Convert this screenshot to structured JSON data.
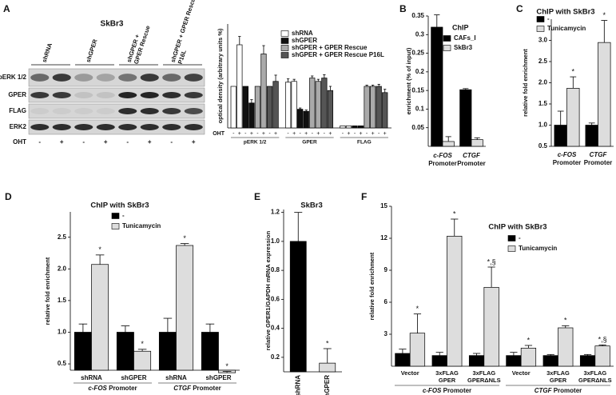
{
  "blot": {
    "panel": "A",
    "title": "SkBr3",
    "lanes": [
      [
        "shRNA"
      ],
      [
        "shGPER"
      ],
      [
        "shGPER +",
        "GPER Rescue"
      ],
      [
        "shGPER + GPER Rescue",
        "P16L"
      ]
    ],
    "rows": [
      "pERK 1/2",
      "GPER",
      "FLAG",
      "ERK2"
    ],
    "treatment": "OHT",
    "levels": [
      "-",
      "+"
    ]
  },
  "chart_data": [
    {
      "type": "bar",
      "panel": "A",
      "ylabel": "optical density (arbitrary units %)",
      "xlabel": "OHT",
      "groups": [
        "pERK 1/2",
        "GPER",
        "FLAG"
      ],
      "categories": [
        "-",
        "+",
        "-",
        "+",
        "-",
        "+"
      ],
      "ylim": [
        0,
        250
      ],
      "series": [
        {
          "name": "shRNA",
          "color": "#ffffff",
          "values": [
            100,
            200,
            110,
            112,
            5,
            5
          ],
          "errors": [
            0,
            20,
            8,
            5,
            0,
            0
          ]
        },
        {
          "name": "shGPER",
          "color": "#111111",
          "values": [
            100,
            60,
            45,
            40,
            5,
            5
          ],
          "errors": [
            0,
            8,
            3,
            3,
            0,
            0
          ]
        },
        {
          "name": "shGPER + GPER Rescue",
          "color": "#aaaaaa",
          "values": [
            100,
            178,
            120,
            112,
            100,
            100
          ],
          "errors": [
            0,
            20,
            5,
            5,
            3,
            3
          ]
        },
        {
          "name": "shGPER + GPER Rescue P16L",
          "color": "#555555",
          "values": [
            100,
            112,
            120,
            90,
            100,
            85
          ],
          "errors": [
            0,
            15,
            8,
            10,
            5,
            8
          ]
        }
      ]
    },
    {
      "type": "bar",
      "panel": "B",
      "ylabel": "enrichment (% of input)",
      "legend_title": "ChIP",
      "categories": [
        "c-FOS",
        "CTGF"
      ],
      "category_note": "Promoter",
      "ylim": [
        0,
        0.35
      ],
      "yticks": [
        0.05,
        0.1,
        0.15,
        0.2,
        0.25,
        0.3,
        0.35
      ],
      "series": [
        {
          "name": "CAFs_I",
          "color": "#000000",
          "values": [
            0.32,
            0.152
          ],
          "errors": [
            0.033,
            0.003
          ]
        },
        {
          "name": "SkBr3",
          "color": "#dddddd",
          "values": [
            0.013,
            0.018
          ],
          "errors": [
            0.013,
            0.005
          ]
        }
      ]
    },
    {
      "type": "bar",
      "panel": "C",
      "title": "ChIP with SkBr3",
      "ylabel": "relative fold enrichment",
      "categories": [
        "c-FOS",
        "CTGF"
      ],
      "category_note": "Promoter",
      "ylim": [
        0.5,
        3.5
      ],
      "yticks": [
        0.5,
        {
          "value": 1,
          "label": "1.0"
        },
        1.5,
        {
          "value": 2,
          "label": "2.0"
        },
        2.5,
        {
          "value": 3,
          "label": "3.0"
        }
      ],
      "series": [
        {
          "name": "-",
          "color": "#000000",
          "values": [
            1.0,
            1.0
          ],
          "errors": [
            0.33,
            0.05
          ]
        },
        {
          "name": "Tunicamycin",
          "color": "#dddddd",
          "values": [
            1.87,
            2.95
          ],
          "errors": [
            0.27,
            0.52
          ],
          "signif": [
            "*",
            "*"
          ]
        }
      ]
    },
    {
      "type": "bar",
      "panel": "D",
      "title": "ChIP with SkBr3",
      "ylabel": "relative fold enrichment",
      "groups": [
        "c-FOS",
        "CTGF"
      ],
      "group_note": "Promoter",
      "categories": [
        "shRNA",
        "shGPER",
        "shRNA",
        "shGPER"
      ],
      "ylim": [
        0.4,
        2.9
      ],
      "yticks": [
        0.5,
        {
          "value": 1,
          "label": "1.0"
        },
        1.5,
        {
          "value": 2,
          "label": "2.0"
        },
        2.5
      ],
      "series": [
        {
          "name": "-",
          "color": "#000000",
          "values": [
            1.0,
            1.0,
            1.0,
            1.0
          ],
          "errors": [
            0.13,
            0.1,
            0.22,
            0.13
          ]
        },
        {
          "name": "Tunicamycin",
          "color": "#dddddd",
          "values": [
            2.07,
            0.7,
            2.37,
            0.36
          ],
          "errors": [
            0.15,
            0.03,
            0.03,
            0.02
          ],
          "signif": [
            "*",
            "*",
            "*",
            "*"
          ]
        }
      ]
    },
    {
      "type": "bar",
      "panel": "E",
      "title": "SkBr3",
      "ylabel": "relative GPER1/GAPDH mRNA expression",
      "categories": [
        "shRNA",
        "shGPER"
      ],
      "values": [
        1.0,
        0.16
      ],
      "errors": [
        0.2,
        0.1
      ],
      "colors": [
        "#000000",
        "#dddddd"
      ],
      "signif": [
        null,
        "*"
      ],
      "ylim": [
        0.1,
        1.22
      ],
      "yticks": [
        0.2,
        0.4,
        0.6,
        0.8,
        {
          "value": 1,
          "label": "1.0"
        },
        1.2
      ]
    },
    {
      "type": "bar",
      "panel": "F",
      "title": "ChIP with SkBr3",
      "ylabel": "relative fold enrichment",
      "groups": [
        "c-FOS",
        "CTGF"
      ],
      "group_note": "Promoter",
      "categories": [
        [
          "Vector"
        ],
        [
          "3xFLAG",
          "GPER"
        ],
        [
          "3xFLAG",
          "GPERΔNLS"
        ],
        [
          "Vector"
        ],
        [
          "3xFLAG",
          "GPER"
        ],
        [
          "3xFLAG",
          "GPERΔNLS"
        ]
      ],
      "ylim": [
        0,
        15
      ],
      "yticks": [
        3,
        6,
        9,
        12,
        15
      ],
      "series": [
        {
          "name": "-",
          "color": "#000000",
          "values": [
            1.2,
            1.0,
            1.0,
            1.0,
            1.0,
            1.0
          ],
          "errors": [
            0.4,
            0.3,
            0.2,
            0.3,
            0.1,
            0.1
          ]
        },
        {
          "name": "Tunicamycin",
          "color": "#dddddd",
          "values": [
            3.1,
            12.2,
            7.4,
            1.7,
            3.6,
            1.9
          ],
          "errors": [
            1.8,
            1.6,
            1.9,
            0.25,
            0.2,
            0.1
          ],
          "signif": [
            "*",
            "*",
            "*,§",
            "*",
            "*",
            "*,§"
          ]
        }
      ]
    }
  ]
}
